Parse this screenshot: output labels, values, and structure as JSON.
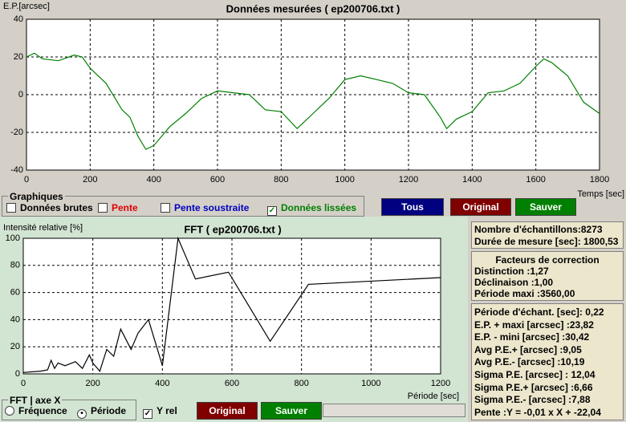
{
  "chart_data": [
    {
      "type": "line",
      "title": "Données mesurées ( ep200706.txt )",
      "y_label": "E.P.[arcsec]",
      "x_label": "Temps [sec]",
      "x": [
        0,
        25,
        50,
        100,
        150,
        175,
        200,
        250,
        300,
        325,
        350,
        375,
        400,
        450,
        500,
        550,
        600,
        650,
        700,
        750,
        800,
        850,
        900,
        950,
        1000,
        1050,
        1100,
        1150,
        1200,
        1250,
        1300,
        1320,
        1350,
        1400,
        1450,
        1500,
        1550,
        1600,
        1625,
        1650,
        1700,
        1750,
        1800
      ],
      "series": [
        {
          "color": "#008000",
          "values": [
            20,
            22,
            19,
            18,
            21,
            20,
            14,
            6,
            -8,
            -12,
            -22,
            -29,
            -27,
            -17,
            -10,
            -2,
            2,
            1,
            0,
            -8,
            -9,
            -18,
            -10,
            -2,
            8,
            10,
            8,
            6,
            1,
            0,
            -12,
            -18,
            -13,
            -9,
            1,
            2,
            6,
            15,
            19,
            17,
            10,
            -4,
            -10
          ]
        }
      ],
      "xlim": [
        0,
        1800
      ],
      "ylim": [
        -40,
        40
      ],
      "xticks": [
        0,
        200,
        400,
        600,
        800,
        1000,
        1200,
        1400,
        1600,
        1800
      ],
      "yticks": [
        -40,
        -20,
        0,
        20,
        40
      ],
      "grid": true
    },
    {
      "type": "line",
      "title": "FFT ( ep200706.txt )",
      "y_label": "Intensité relative [%]",
      "x_label": "Période [sec]",
      "x": [
        0,
        50,
        70,
        80,
        90,
        100,
        120,
        150,
        170,
        190,
        200,
        220,
        240,
        260,
        280,
        310,
        330,
        360,
        400,
        445,
        495,
        590,
        710,
        820,
        1200
      ],
      "series": [
        {
          "color": "#000000",
          "values": [
            1,
            2,
            3,
            10,
            4,
            8,
            6,
            9,
            4,
            14,
            8,
            2,
            18,
            13,
            33,
            18,
            30,
            40,
            6,
            100,
            70,
            75,
            24,
            66,
            71
          ]
        }
      ],
      "xlim": [
        0,
        1200
      ],
      "ylim": [
        0,
        100
      ],
      "xticks": [
        0,
        200,
        400,
        600,
        800,
        1000,
        1200
      ],
      "yticks": [
        0,
        20,
        40,
        60,
        80,
        100
      ],
      "grid": true
    }
  ],
  "graphiques": {
    "title": "Graphiques",
    "options": [
      {
        "label": "Données brutes",
        "color": "#000000",
        "checked": false
      },
      {
        "label": "Pente",
        "color": "#e00000",
        "checked": false
      },
      {
        "label": "Pente soustraite",
        "color": "#0000c0",
        "checked": false
      },
      {
        "label": "Données lissées",
        "color": "#008000",
        "checked": true
      }
    ]
  },
  "buttons": [
    "Tous",
    "Original",
    "Sauver"
  ],
  "fft_axis": {
    "title": "FFT | axe X",
    "options": [
      {
        "label": "Fréquence",
        "selected": false
      },
      {
        "label": "Période",
        "selected": true
      }
    ]
  },
  "y_rel": {
    "label": "Y rel",
    "checked": true
  },
  "fft_buttons": [
    "Original",
    "Sauver"
  ],
  "info": {
    "samples": [
      "Nombre d'échantillons:8273",
      "Durée de mesure [sec]: 1800,53"
    ],
    "correction": {
      "title": "Facteurs de correction",
      "lines": [
        "Distinction :1,27",
        "Déclinaison :1,00",
        "Période maxi :3560,00"
      ]
    },
    "stats": [
      "Période d'échant. [sec]: 0,22",
      "E.P. + maxi [arcsec] :23,82",
      "E.P. - mini [arcsec] :30,42",
      "Avg P.E.+ [arcsec] :9,05",
      "Avg P.E.- [arcsec] :10,19",
      "Sigma P.E. [arcsec] : 12,04",
      "Sigma P.E.+ [arcsec] :6,66",
      "Sigma P.E.- [arcsec] :7,88",
      "Pente :Y = -0,01 x X + -22,04"
    ]
  }
}
